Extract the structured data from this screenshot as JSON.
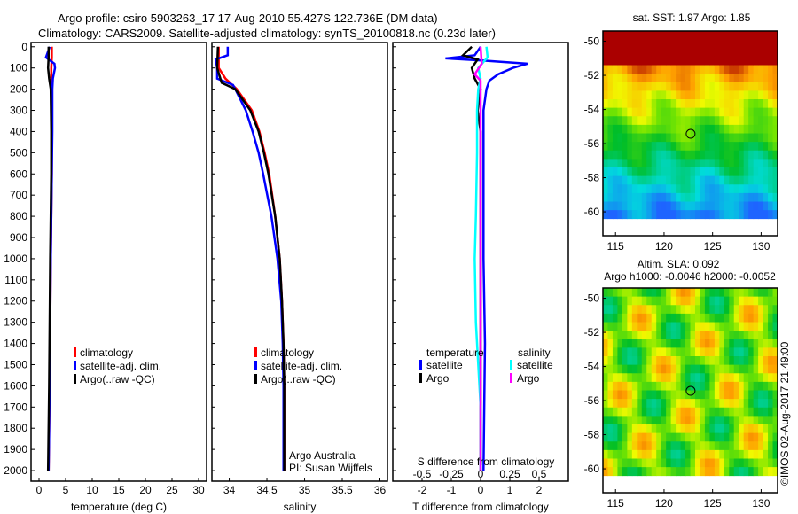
{
  "title_line1": "Argo profile: csiro 5903263_17 17-Aug-2010 55.427S 122.736E (DM data)",
  "title_line2": "Climatology: CARS2009. Satellite-adjusted climatology: synTS_20100818.nc (0.23d later)",
  "copyright": "©IMOS 02-Aug-2017 21:49:00",
  "colors": {
    "climatology": "#ff0000",
    "satellite": "#0000ff",
    "argo": "#000000",
    "s_satellite": "#00ffff",
    "s_argo": "#ff00ff"
  },
  "chart_data": [
    {
      "type": "line",
      "id": "temperature",
      "xlabel": "temperature (deg C)",
      "ylabel": "",
      "xlim": [
        -1.5,
        31.5
      ],
      "ylim": [
        2050,
        -20
      ],
      "xticks": [
        0,
        5,
        10,
        15,
        20,
        25,
        30
      ],
      "yticks": [
        0,
        100,
        200,
        300,
        400,
        500,
        600,
        700,
        800,
        900,
        1000,
        1100,
        1200,
        1300,
        1400,
        1500,
        1600,
        1700,
        1800,
        1900,
        2000
      ],
      "legend": [
        "climatology",
        "satellite-adj. clim.",
        "Argo(..raw -QC)"
      ],
      "series": [
        {
          "name": "climatology",
          "color_key": "climatology",
          "depth": [
            0,
            50,
            100,
            200,
            400,
            600,
            800,
            1000,
            1300,
            1600,
            2000
          ],
          "values": [
            2.4,
            2.4,
            2.3,
            2.3,
            2.4,
            2.4,
            2.3,
            2.2,
            2.1,
            2.0,
            1.8
          ]
        },
        {
          "name": "satellite-adj. clim.",
          "color_key": "satellite",
          "depth": [
            0,
            50,
            80,
            100,
            150,
            200,
            400,
            600,
            800,
            1000,
            1300,
            1600,
            2000
          ],
          "values": [
            2.0,
            1.3,
            2.9,
            3.0,
            2.6,
            2.5,
            2.5,
            2.4,
            2.3,
            2.2,
            2.1,
            2.0,
            1.8
          ]
        },
        {
          "name": "Argo(..raw -QC)",
          "color_key": "argo",
          "depth": [
            0,
            50,
            100,
            150,
            200,
            400,
            600,
            800,
            1000,
            1300,
            1600,
            2000
          ],
          "values": [
            1.8,
            1.8,
            1.7,
            1.9,
            2.2,
            2.3,
            2.3,
            2.2,
            2.1,
            2.0,
            1.9,
            1.7
          ]
        }
      ]
    },
    {
      "type": "line",
      "id": "salinity",
      "xlabel": "salinity",
      "xlim": [
        33.77,
        36.1
      ],
      "ylim": [
        2050,
        -20
      ],
      "xticks": [
        34,
        34.5,
        35,
        35.5,
        36
      ],
      "legend": [
        "climatology",
        "satellite-adj. clim.",
        "Argo(..raw -QC)"
      ],
      "annotation": [
        "Argo Australia",
        "PI: Susan Wijffels"
      ],
      "series": [
        {
          "name": "climatology",
          "color_key": "climatology",
          "depth": [
            0,
            100,
            150,
            200,
            300,
            400,
            500,
            600,
            800,
            1000,
            1200,
            1400,
            1600,
            2000
          ],
          "values": [
            33.86,
            33.86,
            33.95,
            34.1,
            34.3,
            34.4,
            34.47,
            34.53,
            34.61,
            34.67,
            34.7,
            34.72,
            34.73,
            34.73
          ]
        },
        {
          "name": "satellite-adj. clim.",
          "color_key": "satellite",
          "depth": [
            0,
            40,
            60,
            100,
            150,
            180,
            200,
            300,
            400,
            500,
            600,
            800,
            1000,
            1200,
            1400,
            1600,
            2000
          ],
          "values": [
            33.98,
            33.98,
            33.82,
            33.84,
            33.84,
            34.05,
            34.08,
            34.22,
            34.31,
            34.39,
            34.45,
            34.56,
            34.64,
            34.69,
            34.71,
            34.72,
            34.72
          ]
        },
        {
          "name": "Argo(..raw -QC)",
          "color_key": "argo",
          "depth": [
            0,
            100,
            170,
            200,
            300,
            400,
            500,
            600,
            800,
            1000,
            1200,
            1400,
            1600,
            2000
          ],
          "values": [
            33.85,
            33.84,
            33.9,
            34.08,
            34.28,
            34.39,
            34.46,
            34.52,
            34.61,
            34.67,
            34.7,
            34.72,
            34.73,
            34.73
          ]
        }
      ]
    },
    {
      "type": "line",
      "id": "difference",
      "xlabel": "T difference from climatology",
      "x2label": "S difference from climatology",
      "xlim": [
        -3,
        3
      ],
      "ylim": [
        2050,
        -20
      ],
      "xticks": [
        -2,
        -1,
        0,
        1,
        2
      ],
      "x2ticks": [
        -0.5,
        -0.25,
        0,
        0.25,
        0.5
      ],
      "legend_temperature": {
        "title": "temperature",
        "items": [
          "satellite",
          "Argo"
        ]
      },
      "legend_salinity": {
        "title": "salinity",
        "items": [
          "satellite",
          "Argo"
        ]
      },
      "series": [
        {
          "name": "temperature satellite",
          "color_key": "satellite",
          "units": "T",
          "depth": [
            0,
            40,
            55,
            65,
            80,
            100,
            130,
            160,
            200,
            300,
            400,
            600,
            800,
            1000,
            1400,
            2000
          ],
          "values": [
            0,
            -0.2,
            -1.2,
            0.1,
            1.6,
            1.1,
            0.6,
            0.3,
            0.2,
            0.1,
            0.1,
            0.1,
            0.1,
            0.1,
            0.15,
            0.1
          ]
        },
        {
          "name": "temperature Argo",
          "color_key": "argo",
          "units": "T",
          "depth": [
            0,
            40,
            60,
            100,
            150,
            200,
            300,
            400,
            600,
            800,
            1000,
            1400,
            2000
          ],
          "values": [
            -0.3,
            -0.6,
            -0.1,
            -0.3,
            -0.2,
            0.0,
            -0.1,
            0.0,
            0.0,
            0.0,
            0.0,
            0.0,
            0.0
          ]
        },
        {
          "name": "salinity satellite",
          "color_key": "s_satellite",
          "units": "S",
          "depth": [
            0,
            50,
            100,
            150,
            200,
            300,
            500,
            800,
            1000,
            1300,
            1700,
            2000
          ],
          "values": [
            0.05,
            0.06,
            -0.02,
            0.0,
            -0.02,
            -0.03,
            -0.03,
            -0.04,
            -0.05,
            -0.04,
            0.0,
            0.0
          ]
        },
        {
          "name": "salinity Argo",
          "color_key": "s_argo",
          "units": "S",
          "depth": [
            0,
            80,
            130,
            160,
            200,
            300,
            500,
            800,
            1000,
            2000
          ],
          "values": [
            0.0,
            0.01,
            -0.05,
            0.0,
            0.0,
            0.0,
            0.0,
            0.0,
            0.0,
            0.0
          ]
        }
      ]
    },
    {
      "type": "heatmap",
      "id": "sst_map",
      "title": "sat. SST: 1.97 Argo: 1.85",
      "xlim": [
        113.7,
        131.7
      ],
      "ylim": [
        -61.4,
        -49.4
      ],
      "xticks": [
        115,
        120,
        125,
        130
      ],
      "yticks": [
        -50,
        -52,
        -54,
        -56,
        -58,
        -60
      ],
      "marker": {
        "lon": 122.736,
        "lat": -55.427
      }
    },
    {
      "type": "heatmap",
      "id": "sla_map",
      "title": "Altim. SLA: 0.092",
      "subtitle": "Argo h1000: -0.0046 h2000: -0.0052",
      "xlim": [
        113.7,
        131.7
      ],
      "ylim": [
        -61.4,
        -49.4
      ],
      "xticks": [
        115,
        120,
        125,
        130
      ],
      "yticks": [
        -50,
        -52,
        -54,
        -56,
        -58,
        -60
      ],
      "marker": {
        "lon": 122.736,
        "lat": -55.427
      }
    }
  ]
}
